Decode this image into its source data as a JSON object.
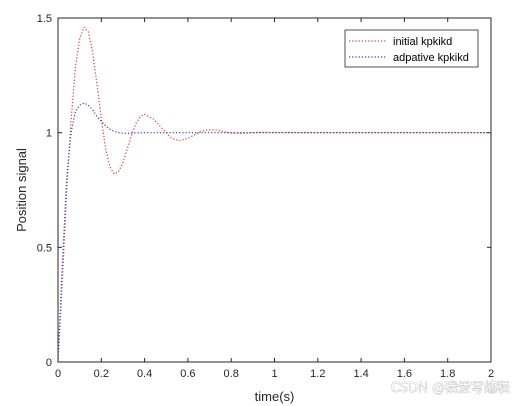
{
  "chart_data": {
    "type": "line",
    "title": "",
    "xlabel": "time(s)",
    "ylabel": "Position signal",
    "xlim": [
      0,
      2
    ],
    "ylim": [
      0,
      1.5
    ],
    "xticks": [
      0,
      0.2,
      0.4,
      0.6,
      0.8,
      1,
      1.2,
      1.4,
      1.6,
      1.8,
      2
    ],
    "xtick_labels": [
      "0",
      "0.2",
      "0.4",
      "0.6",
      "0.8",
      "1",
      "1.2",
      "1.4",
      "1.6",
      "1.8",
      "2"
    ],
    "yticks": [
      0,
      0.5,
      1,
      1.5
    ],
    "ytick_labels": [
      "0",
      "0.5",
      "1",
      "1.5"
    ],
    "grid": false,
    "legend_position": "top-right",
    "series": [
      {
        "name": "initial kpkikd",
        "color": "#e8342d",
        "style": "dotted",
        "x": [
          0,
          0.02,
          0.04,
          0.06,
          0.08,
          0.1,
          0.12,
          0.14,
          0.16,
          0.18,
          0.2,
          0.22,
          0.24,
          0.26,
          0.28,
          0.3,
          0.32,
          0.34,
          0.36,
          0.38,
          0.4,
          0.42,
          0.44,
          0.46,
          0.48,
          0.5,
          0.52,
          0.54,
          0.56,
          0.58,
          0.6,
          0.62,
          0.64,
          0.66,
          0.68,
          0.7,
          0.72,
          0.74,
          0.76,
          0.78,
          0.8,
          0.85,
          0.9,
          0.95,
          1.0,
          1.2,
          1.4,
          1.6,
          1.8,
          2.0
        ],
        "y": [
          0,
          0.35,
          0.75,
          1.05,
          1.28,
          1.41,
          1.46,
          1.44,
          1.35,
          1.21,
          1.06,
          0.93,
          0.85,
          0.82,
          0.83,
          0.87,
          0.93,
          0.99,
          1.04,
          1.07,
          1.08,
          1.07,
          1.06,
          1.04,
          1.02,
          1.0,
          0.98,
          0.97,
          0.965,
          0.97,
          0.975,
          0.985,
          0.995,
          1.005,
          1.01,
          1.012,
          1.012,
          1.01,
          1.006,
          1.002,
          0.998,
          0.997,
          1.0,
          1.002,
          1.001,
          1.0,
          1.0,
          1.0,
          1.0,
          1.0
        ]
      },
      {
        "name": "adpative kpkikd",
        "color": "#2a3bd4",
        "style": "dotted",
        "x": [
          0,
          0.02,
          0.04,
          0.06,
          0.08,
          0.1,
          0.12,
          0.14,
          0.16,
          0.18,
          0.2,
          0.22,
          0.24,
          0.26,
          0.28,
          0.3,
          0.32,
          0.34,
          0.36,
          0.4,
          0.45,
          0.5,
          0.6,
          0.8,
          1.0,
          1.2,
          1.4,
          1.6,
          1.8,
          2.0
        ],
        "y": [
          0,
          0.42,
          0.8,
          1.0,
          1.09,
          1.12,
          1.13,
          1.12,
          1.1,
          1.07,
          1.05,
          1.03,
          1.015,
          1.005,
          1.0,
          0.998,
          0.997,
          0.998,
          0.999,
          1.0,
          1.0,
          1.0,
          1.0,
          1.0,
          1.0,
          1.0,
          1.0,
          1.0,
          1.0,
          1.0
        ]
      }
    ]
  },
  "watermark": {
    "text": "CSDN @我爱写编程"
  }
}
